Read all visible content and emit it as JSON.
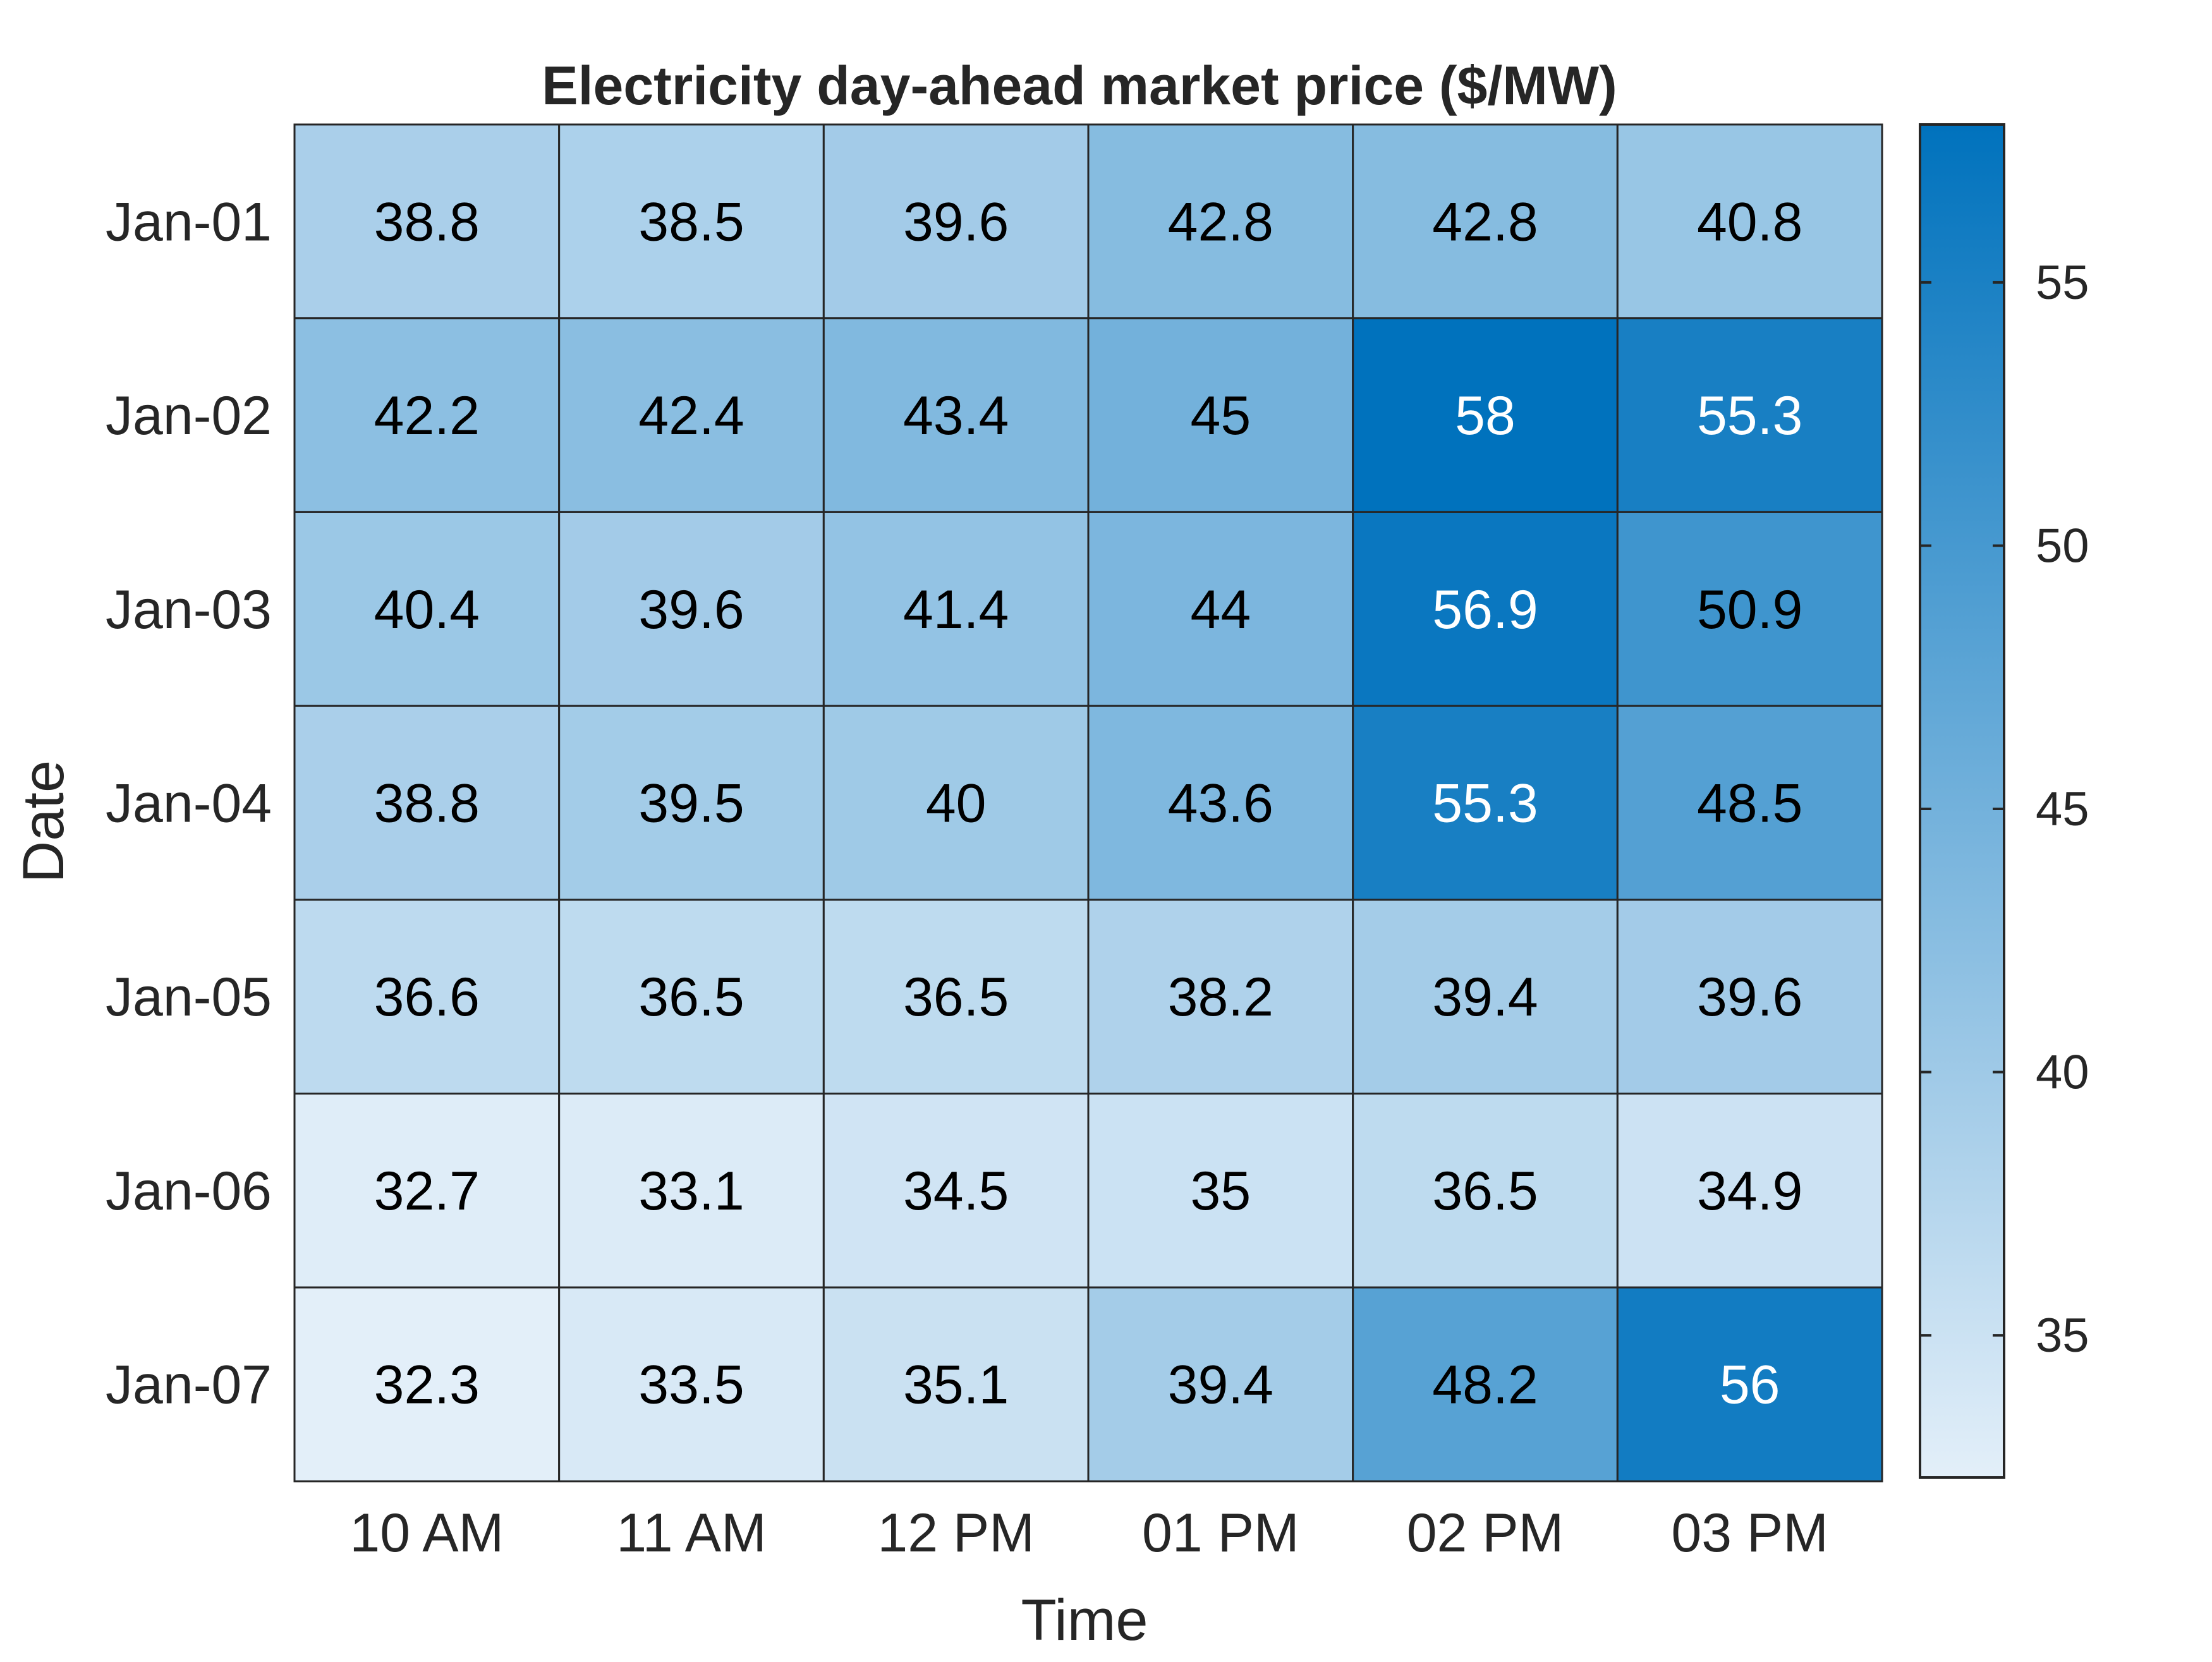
{
  "chart_data": {
    "type": "heatmap",
    "title": "Electricity day-ahead market price ($/MW)",
    "xlabel": "Time",
    "ylabel": "Date",
    "x_categories": [
      "10 AM",
      "11 AM",
      "12 PM",
      "01 PM",
      "02 PM",
      "03 PM"
    ],
    "y_categories": [
      "Jan-01",
      "Jan-02",
      "Jan-03",
      "Jan-04",
      "Jan-05",
      "Jan-06",
      "Jan-07"
    ],
    "values": [
      [
        "38.8",
        "38.5",
        "39.6",
        "42.8",
        "42.8",
        "40.8"
      ],
      [
        "42.2",
        "42.4",
        "43.4",
        "45",
        "58",
        "55.3"
      ],
      [
        "40.4",
        "39.6",
        "41.4",
        "44",
        "56.9",
        "50.9"
      ],
      [
        "38.8",
        "39.5",
        "40",
        "43.6",
        "55.3",
        "48.5"
      ],
      [
        "36.6",
        "36.5",
        "36.5",
        "38.2",
        "39.4",
        "39.6"
      ],
      [
        "32.7",
        "33.1",
        "34.5",
        "35",
        "36.5",
        "34.9"
      ],
      [
        "32.3",
        "33.5",
        "35.1",
        "39.4",
        "48.2",
        "56"
      ]
    ],
    "colorbar": {
      "min": 32.3,
      "max": 58,
      "ticks": [
        35,
        40,
        45,
        50,
        55
      ],
      "low_color": "#e3eff9",
      "high_color": "#0072bd"
    },
    "grid": true,
    "colors": {
      "text_dark": "#000000",
      "text_light": "#ffffff",
      "axis_text": "#262626",
      "cell_border": "#262626"
    }
  }
}
